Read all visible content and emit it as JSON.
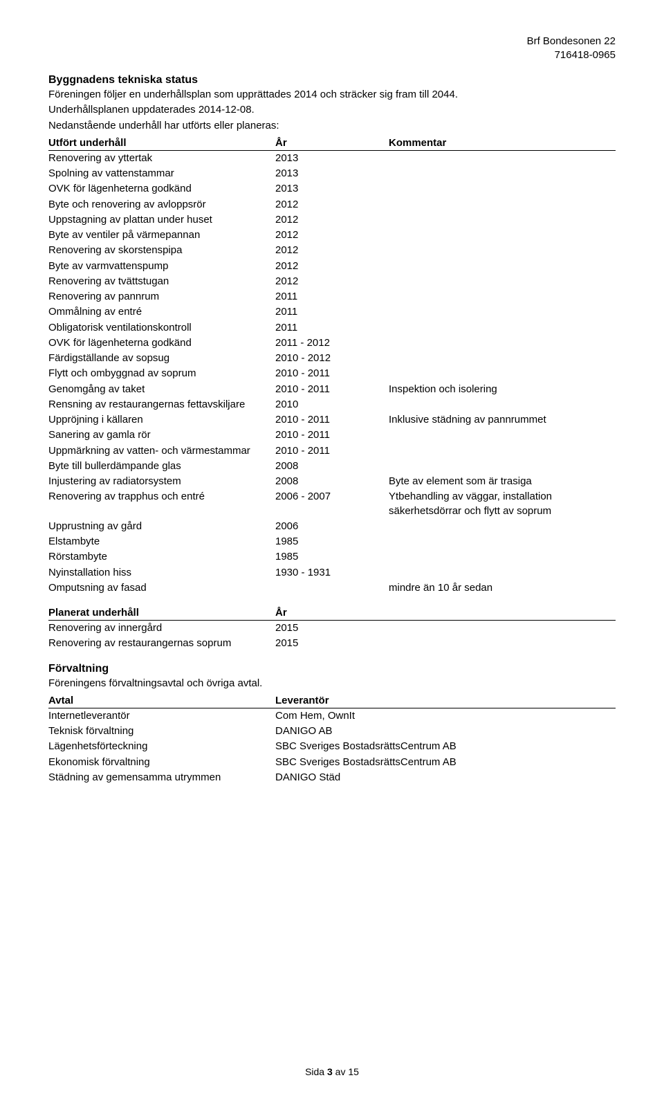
{
  "header": {
    "line1": "Brf Bondesonen 22",
    "line2": "716418-0965"
  },
  "section_status": {
    "title": "Byggnadens tekniska status",
    "p1": "Föreningen följer en underhållsplan som upprättades 2014 och sträcker sig fram till 2044.",
    "p2": "Underhållsplanen uppdaterades 2014-12-08.",
    "p3": "Nedanstående underhåll har utförts eller planeras:"
  },
  "maintenance_done": {
    "headers": {
      "c1": "Utfört underhåll",
      "c2": "År",
      "c3": "Kommentar"
    },
    "rows": [
      {
        "c1": "Renovering av yttertak",
        "c2": "2013",
        "c3": ""
      },
      {
        "c1": "Spolning av vattenstammar",
        "c2": "2013",
        "c3": ""
      },
      {
        "c1": "OVK för lägenheterna godkänd",
        "c2": "2013",
        "c3": ""
      },
      {
        "c1": "Byte och renovering av avloppsrör",
        "c2": "2012",
        "c3": ""
      },
      {
        "c1": "Uppstagning av plattan under huset",
        "c2": "2012",
        "c3": ""
      },
      {
        "c1": "Byte av ventiler på värmepannan",
        "c2": "2012",
        "c3": ""
      },
      {
        "c1": "Renovering av skorstenspipa",
        "c2": "2012",
        "c3": ""
      },
      {
        "c1": "Byte av varmvattenspump",
        "c2": "2012",
        "c3": ""
      },
      {
        "c1": "Renovering av tvättstugan",
        "c2": "2012",
        "c3": ""
      },
      {
        "c1": "Renovering av pannrum",
        "c2": "2011",
        "c3": ""
      },
      {
        "c1": "Ommålning av entré",
        "c2": "2011",
        "c3": ""
      },
      {
        "c1": "Obligatorisk ventilationskontroll",
        "c2": "2011",
        "c3": ""
      },
      {
        "c1": "OVK för lägenheterna godkänd",
        "c2": "2011 - 2012",
        "c3": ""
      },
      {
        "c1": "Färdigställande av sopsug",
        "c2": "2010 - 2012",
        "c3": ""
      },
      {
        "c1": "Flytt och ombyggnad av soprum",
        "c2": "2010 - 2011",
        "c3": ""
      },
      {
        "c1": "Genomgång av taket",
        "c2": "2010 - 2011",
        "c3": "Inspektion och isolering"
      },
      {
        "c1": "Rensning av restaurangernas fettavskiljare",
        "c2": "2010",
        "c3": ""
      },
      {
        "c1": "Uppröjning i källaren",
        "c2": "2010 - 2011",
        "c3": "Inklusive städning av pannrummet"
      },
      {
        "c1": "Sanering av gamla rör",
        "c2": "2010 - 2011",
        "c3": ""
      },
      {
        "c1": "Uppmärkning av vatten- och värmestammar",
        "c2": "2010 - 2011",
        "c3": ""
      },
      {
        "c1": "Byte till bullerdämpande glas",
        "c2": "2008",
        "c3": ""
      },
      {
        "c1": "Injustering av radiatorsystem",
        "c2": "2008",
        "c3": "Byte av element som är trasiga"
      },
      {
        "c1": "Renovering av trapphus och entré",
        "c2": "2006 - 2007",
        "c3": "Ytbehandling av väggar, installation säkerhetsdörrar och flytt av soprum"
      },
      {
        "c1": "Upprustning av gård",
        "c2": "2006",
        "c3": ""
      },
      {
        "c1": "Elstambyte",
        "c2": "1985",
        "c3": ""
      },
      {
        "c1": "Rörstambyte",
        "c2": "1985",
        "c3": ""
      },
      {
        "c1": "Nyinstallation hiss",
        "c2": "1930 - 1931",
        "c3": ""
      },
      {
        "c1": "Omputsning av fasad",
        "c2": "",
        "c3": "mindre än 10 år sedan"
      }
    ]
  },
  "maintenance_planned": {
    "headers": {
      "c1": "Planerat underhåll",
      "c2": "År"
    },
    "rows": [
      {
        "c1": "Renovering av innergård",
        "c2": "2015"
      },
      {
        "c1": "Renovering av restaurangernas soprum",
        "c2": "2015"
      }
    ]
  },
  "management": {
    "title": "Förvaltning",
    "p1": "Föreningens förvaltningsavtal och övriga avtal."
  },
  "contracts": {
    "headers": {
      "c1": "Avtal",
      "c2": "Leverantör"
    },
    "rows": [
      {
        "c1": "Internetleverantör",
        "c2": "Com Hem, OwnIt"
      },
      {
        "c1": "Teknisk förvaltning",
        "c2": "DANIGO AB"
      },
      {
        "c1": "Lägenhetsförteckning",
        "c2": "SBC Sveriges BostadsrättsCentrum AB"
      },
      {
        "c1": "Ekonomisk förvaltning",
        "c2": "SBC Sveriges BostadsrättsCentrum AB"
      },
      {
        "c1": "Städning av gemensamma utrymmen",
        "c2": "DANIGO Städ"
      }
    ]
  },
  "footer": {
    "prefix": "Sida ",
    "page": "3",
    "middle": " av ",
    "total": "15"
  }
}
